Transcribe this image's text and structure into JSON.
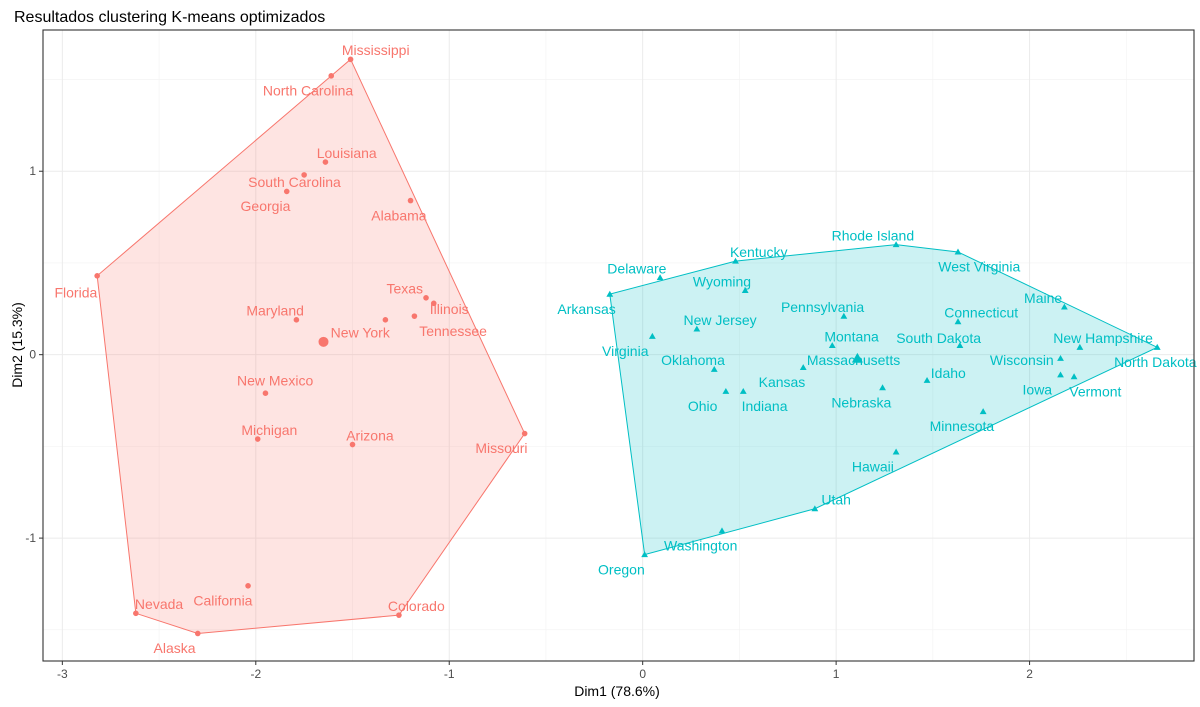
{
  "chart_data": {
    "type": "scatter",
    "title": "Resultados clustering K-means optimizados",
    "xlabel": "Dim1 (78.6%)",
    "ylabel": "Dim2 (15.3%)",
    "xlim": [
      -3.1,
      2.85
    ],
    "ylim": [
      -1.67,
      1.77
    ],
    "xticks": [
      -3,
      -2,
      -1,
      0,
      1,
      2
    ],
    "xtick_labels": [
      "-3",
      "-2",
      "-1",
      "0",
      "1",
      "2"
    ],
    "yticks": [
      -1,
      0,
      1
    ],
    "ytick_labels": [
      "-1",
      "0",
      "1"
    ],
    "grid": true,
    "series": [
      {
        "color": "#F8766D",
        "marker": "circle",
        "hull": [
          "Florida",
          "Nevada",
          "Alaska",
          "Colorado",
          "Missouri",
          "Mississippi",
          "North Carolina"
        ],
        "centroid": [
          -1.65,
          0.07
        ],
        "points": [
          {
            "name": "Mississippi",
            "x": -1.51,
            "y": 1.61,
            "lx": -1.38,
            "ly": 1.66
          },
          {
            "name": "North Carolina",
            "x": -1.61,
            "y": 1.52,
            "lx": -1.73,
            "ly": 1.44
          },
          {
            "name": "Louisiana",
            "x": -1.64,
            "y": 1.05,
            "lx": -1.53,
            "ly": 1.1
          },
          {
            "name": "South Carolina",
            "x": -1.75,
            "y": 0.98,
            "lx": -1.8,
            "ly": 0.94
          },
          {
            "name": "Georgia",
            "x": -1.84,
            "y": 0.89,
            "lx": -1.95,
            "ly": 0.81
          },
          {
            "name": "Alabama",
            "x": -1.2,
            "y": 0.84,
            "lx": -1.26,
            "ly": 0.76
          },
          {
            "name": "Texas",
            "x": -1.12,
            "y": 0.31,
            "lx": -1.23,
            "ly": 0.36
          },
          {
            "name": "Illinois",
            "x": -1.08,
            "y": 0.28,
            "lx": -1.0,
            "ly": 0.25
          },
          {
            "name": "Tennessee",
            "x": -1.18,
            "y": 0.21,
            "lx": -0.98,
            "ly": 0.13
          },
          {
            "name": "Maryland",
            "x": -1.79,
            "y": 0.19,
            "lx": -1.9,
            "ly": 0.24
          },
          {
            "name": "New York",
            "x": -1.33,
            "y": 0.19,
            "lx": -1.46,
            "ly": 0.12
          },
          {
            "name": "Florida",
            "x": -2.82,
            "y": 0.43,
            "lx": -2.93,
            "ly": 0.34
          },
          {
            "name": "New Mexico",
            "x": -1.95,
            "y": -0.21,
            "lx": -1.9,
            "ly": -0.14
          },
          {
            "name": "Michigan",
            "x": -1.99,
            "y": -0.46,
            "lx": -1.93,
            "ly": -0.41
          },
          {
            "name": "Arizona",
            "x": -1.5,
            "y": -0.49,
            "lx": -1.41,
            "ly": -0.44
          },
          {
            "name": "Missouri",
            "x": -0.61,
            "y": -0.43,
            "lx": -0.73,
            "ly": -0.51
          },
          {
            "name": "California",
            "x": -2.04,
            "y": -1.26,
            "lx": -2.17,
            "ly": -1.34
          },
          {
            "name": "Nevada",
            "x": -2.62,
            "y": -1.41,
            "lx": -2.5,
            "ly": -1.36
          },
          {
            "name": "Alaska",
            "x": -2.3,
            "y": -1.52,
            "lx": -2.42,
            "ly": -1.6
          },
          {
            "name": "Colorado",
            "x": -1.26,
            "y": -1.42,
            "lx": -1.17,
            "ly": -1.37
          }
        ]
      },
      {
        "color": "#00BFC4",
        "marker": "triangle",
        "hull": [
          "Arkansas",
          "Oregon",
          "Utah",
          "North Dakota",
          "West Virginia",
          "Rhode Island",
          "Kentucky"
        ],
        "centroid": [
          1.11,
          -0.02
        ],
        "points": [
          {
            "name": "Rhode Island",
            "x": 1.31,
            "y": 0.6,
            "lx": 1.19,
            "ly": 0.65
          },
          {
            "name": "Kentucky",
            "x": 0.48,
            "y": 0.51,
            "lx": 0.6,
            "ly": 0.56
          },
          {
            "name": "West Virginia",
            "x": 1.63,
            "y": 0.56,
            "lx": 1.74,
            "ly": 0.48
          },
          {
            "name": "Delaware",
            "x": 0.09,
            "y": 0.42,
            "lx": -0.03,
            "ly": 0.47
          },
          {
            "name": "Wyoming",
            "x": 0.53,
            "y": 0.35,
            "lx": 0.41,
            "ly": 0.4
          },
          {
            "name": "Arkansas",
            "x": -0.17,
            "y": 0.33,
            "lx": -0.29,
            "ly": 0.25
          },
          {
            "name": "Maine",
            "x": 2.18,
            "y": 0.26,
            "lx": 2.07,
            "ly": 0.31
          },
          {
            "name": "Pennsylvania",
            "x": 1.04,
            "y": 0.21,
            "lx": 0.93,
            "ly": 0.26
          },
          {
            "name": "Connecticut",
            "x": 1.63,
            "y": 0.18,
            "lx": 1.75,
            "ly": 0.23
          },
          {
            "name": "New Jersey",
            "x": 0.28,
            "y": 0.14,
            "lx": 0.4,
            "ly": 0.19
          },
          {
            "name": "New Hampshire",
            "x": 2.26,
            "y": 0.04,
            "lx": 2.38,
            "ly": 0.09
          },
          {
            "name": "North Dakota",
            "x": 2.66,
            "y": 0.04,
            "lx": 2.65,
            "ly": -0.04
          },
          {
            "name": "Virginia",
            "x": 0.05,
            "y": 0.1,
            "lx": -0.09,
            "ly": 0.02
          },
          {
            "name": "Montana",
            "x": 0.98,
            "y": 0.05,
            "lx": 1.08,
            "ly": 0.1
          },
          {
            "name": "South Dakota",
            "x": 1.64,
            "y": 0.05,
            "lx": 1.53,
            "ly": 0.09
          },
          {
            "name": "Massachusetts",
            "x": 1.11,
            "y": -0.03,
            "lx": 1.09,
            "ly": -0.03
          },
          {
            "name": "Wisconsin",
            "x": 2.16,
            "y": -0.02,
            "lx": 1.96,
            "ly": -0.03
          },
          {
            "name": "Oklahoma",
            "x": 0.37,
            "y": -0.08,
            "lx": 0.26,
            "ly": -0.03
          },
          {
            "name": "Kansas",
            "x": 0.83,
            "y": -0.07,
            "lx": 0.72,
            "ly": -0.15
          },
          {
            "name": "Idaho",
            "x": 1.47,
            "y": -0.14,
            "lx": 1.58,
            "ly": -0.1
          },
          {
            "name": "Iowa",
            "x": 2.16,
            "y": -0.11,
            "lx": 2.04,
            "ly": -0.19
          },
          {
            "name": "Vermont",
            "x": 2.23,
            "y": -0.12,
            "lx": 2.34,
            "ly": -0.2
          },
          {
            "name": "Ohio",
            "x": 0.43,
            "y": -0.2,
            "lx": 0.31,
            "ly": -0.28
          },
          {
            "name": "Indiana",
            "x": 0.52,
            "y": -0.2,
            "lx": 0.63,
            "ly": -0.28
          },
          {
            "name": "Nebraska",
            "x": 1.24,
            "y": -0.18,
            "lx": 1.13,
            "ly": -0.26
          },
          {
            "name": "Minnesota",
            "x": 1.76,
            "y": -0.31,
            "lx": 1.65,
            "ly": -0.39
          },
          {
            "name": "Hawaii",
            "x": 1.31,
            "y": -0.53,
            "lx": 1.19,
            "ly": -0.61
          },
          {
            "name": "Utah",
            "x": 0.89,
            "y": -0.84,
            "lx": 1.0,
            "ly": -0.79
          },
          {
            "name": "Washington",
            "x": 0.41,
            "y": -0.96,
            "lx": 0.3,
            "ly": -1.04
          },
          {
            "name": "Oregon",
            "x": 0.01,
            "y": -1.09,
            "lx": -0.11,
            "ly": -1.17
          }
        ]
      }
    ]
  }
}
